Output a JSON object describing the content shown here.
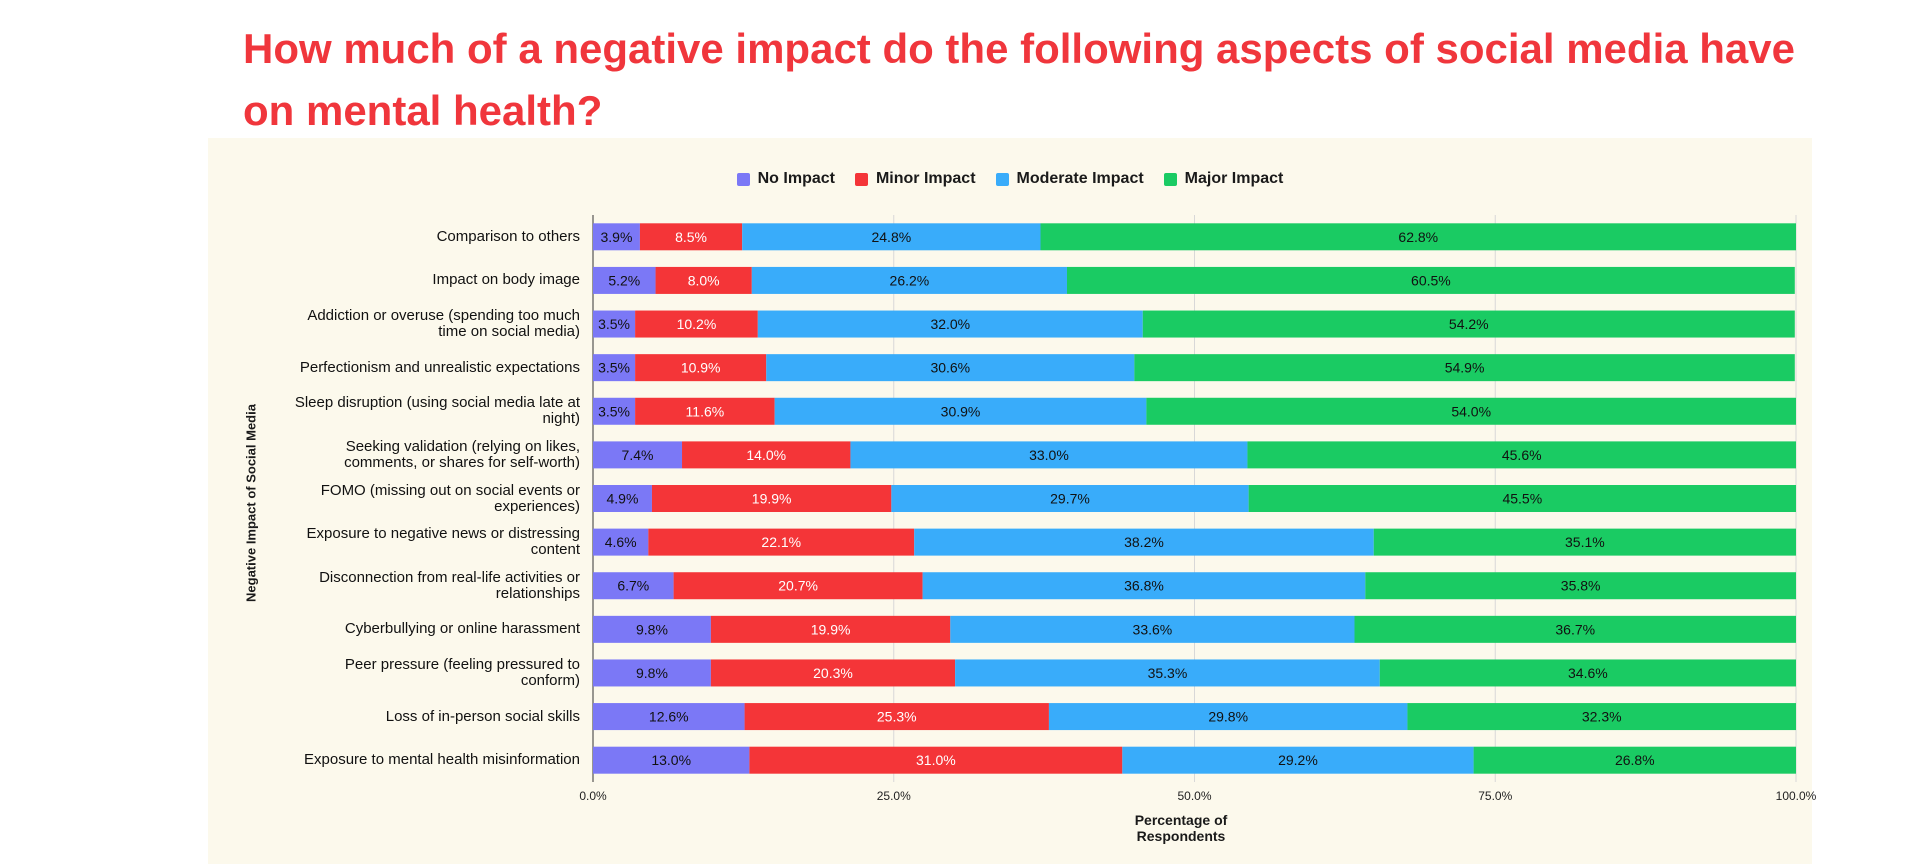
{
  "chart_data": {
    "type": "bar",
    "stacked": true,
    "orientation": "horizontal",
    "title": "How much of a negative impact do the following aspects of social media have on mental health?",
    "xlabel": "Percentage of Respondents",
    "ylabel": "Negative Impact of Social Media",
    "xlim": [
      0,
      100
    ],
    "xticks": [
      "0.0%",
      "25.0%",
      "50.0%",
      "75.0%",
      "100.0%"
    ],
    "legend_position": "top-center",
    "grid": true,
    "categories": [
      "Comparison to others",
      "Impact on body image",
      "Addiction or overuse (spending too much time on social media)",
      "Perfectionism and unrealistic expectations",
      "Sleep disruption (using social media late at night)",
      "Seeking validation (relying on likes, comments, or shares for self-worth)",
      "FOMO (missing out on social events or experiences)",
      "Exposure to negative news or distressing content",
      "Disconnection from real-life activities or relationships",
      "Cyberbullying or online harassment",
      "Peer pressure (feeling pressured to conform)",
      "Loss of in-person social skills",
      "Exposure to mental health misinformation"
    ],
    "category_lines": [
      [
        "Comparison to others"
      ],
      [
        "Impact on body image"
      ],
      [
        "Addiction or overuse (spending too much",
        "time on social media)"
      ],
      [
        "Perfectionism and unrealistic expectations"
      ],
      [
        "Sleep disruption (using social media late at",
        "night)"
      ],
      [
        "Seeking validation (relying on likes,",
        "comments, or shares for self-worth)"
      ],
      [
        "FOMO (missing out on social events or",
        "experiences)"
      ],
      [
        "Exposure to negative news or distressing",
        "content"
      ],
      [
        "Disconnection from real-life activities or",
        "relationships"
      ],
      [
        "Cyberbullying or online harassment"
      ],
      [
        "Peer pressure (feeling pressured to",
        "conform)"
      ],
      [
        "Loss of in-person social skills"
      ],
      [
        "Exposure to mental health misinformation"
      ]
    ],
    "series": [
      {
        "name": "No Impact",
        "color": "#7b78f6",
        "label_color": "#111111",
        "values": [
          3.9,
          5.2,
          3.5,
          3.5,
          3.5,
          7.4,
          4.9,
          4.6,
          6.7,
          9.8,
          9.8,
          12.6,
          13.0
        ]
      },
      {
        "name": "Minor Impact",
        "color": "#f43538",
        "label_color": "#ffffff",
        "values": [
          8.5,
          8.0,
          10.2,
          10.9,
          11.6,
          14.0,
          19.9,
          22.1,
          20.7,
          19.9,
          20.3,
          25.3,
          31.0
        ]
      },
      {
        "name": "Moderate Impact",
        "color": "#39acfa",
        "label_color": "#111111",
        "values": [
          24.8,
          26.2,
          32.0,
          30.6,
          30.9,
          33.0,
          29.7,
          38.2,
          36.8,
          33.6,
          35.3,
          29.8,
          29.2
        ]
      },
      {
        "name": "Major Impact",
        "color": "#1acb63",
        "label_color": "#111111",
        "values": [
          62.8,
          60.5,
          54.2,
          54.9,
          54.0,
          45.6,
          45.5,
          35.1,
          35.8,
          36.7,
          34.6,
          32.3,
          26.8
        ]
      }
    ]
  }
}
